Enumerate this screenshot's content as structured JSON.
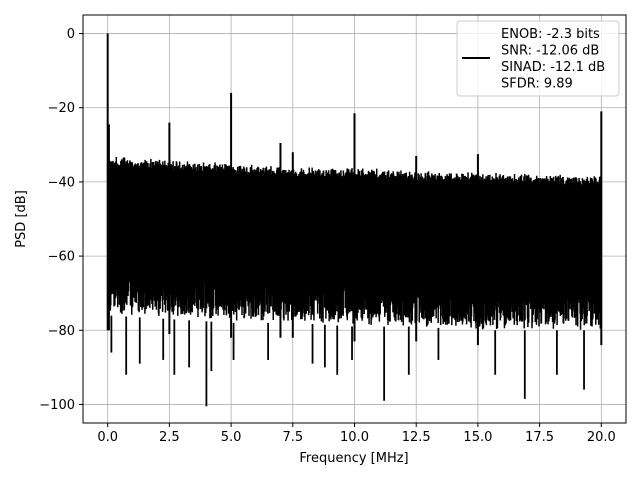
{
  "chart_data": {
    "type": "line",
    "xlabel": "Frequency [MHz]",
    "ylabel": "PSD [dB]",
    "xlim": [
      -1.0,
      21.0
    ],
    "ylim": [
      -105,
      5
    ],
    "grid": true,
    "legend_position": "top-right",
    "line_color": "#000000",
    "x_ticks": [
      {
        "value": 0.0,
        "label": "0.0"
      },
      {
        "value": 2.5,
        "label": "2.5"
      },
      {
        "value": 5.0,
        "label": "5.0"
      },
      {
        "value": 7.5,
        "label": "7.5"
      },
      {
        "value": 10.0,
        "label": "10.0"
      },
      {
        "value": 12.5,
        "label": "12.5"
      },
      {
        "value": 15.0,
        "label": "15.0"
      },
      {
        "value": 17.5,
        "label": "17.5"
      },
      {
        "value": 20.0,
        "label": "20.0"
      }
    ],
    "y_ticks": [
      {
        "value": 0,
        "label": "0"
      },
      {
        "value": -20,
        "label": "−20"
      },
      {
        "value": -40,
        "label": "−40"
      },
      {
        "value": -60,
        "label": "−60"
      },
      {
        "value": -80,
        "label": "−80"
      },
      {
        "value": -100,
        "label": "−100"
      }
    ],
    "legend_lines": [
      "ENOB: -2.3 bits",
      "SNR: -12.06 dB",
      "SINAD: -12.1 dB",
      "SFDR: 9.89"
    ],
    "noise_envelope": {
      "x": [
        0.0,
        2.5,
        5.0,
        7.5,
        10.0,
        12.5,
        15.0,
        17.5,
        20.0
      ],
      "upper": [
        -33,
        -34,
        -35,
        -36,
        -36,
        -37,
        -37,
        -38,
        -38
      ],
      "lower": [
        -76,
        -77,
        -78,
        -78,
        -79,
        -79,
        -80,
        -80,
        -80
      ]
    },
    "spikes": [
      {
        "x": 0.0,
        "y": 0.0
      },
      {
        "x": 0.05,
        "y": -24.5
      },
      {
        "x": 2.5,
        "y": -24.0
      },
      {
        "x": 5.0,
        "y": -16.0
      },
      {
        "x": 7.0,
        "y": -29.5
      },
      {
        "x": 7.5,
        "y": -32.0
      },
      {
        "x": 10.0,
        "y": -21.5
      },
      {
        "x": 12.5,
        "y": -33.0
      },
      {
        "x": 15.0,
        "y": -32.5
      },
      {
        "x": 20.0,
        "y": -21.0
      }
    ],
    "dips": [
      {
        "x": 0.15,
        "y": -86.0
      },
      {
        "x": 0.75,
        "y": -92.0
      },
      {
        "x": 1.3,
        "y": -89.0
      },
      {
        "x": 2.25,
        "y": -88.0
      },
      {
        "x": 2.7,
        "y": -92.0
      },
      {
        "x": 3.3,
        "y": -90.0
      },
      {
        "x": 4.0,
        "y": -100.5
      },
      {
        "x": 4.2,
        "y": -91.0
      },
      {
        "x": 5.1,
        "y": -88.0
      },
      {
        "x": 6.5,
        "y": -88.0
      },
      {
        "x": 8.3,
        "y": -89.0
      },
      {
        "x": 8.8,
        "y": -90.0
      },
      {
        "x": 9.3,
        "y": -92.0
      },
      {
        "x": 9.9,
        "y": -88.0
      },
      {
        "x": 11.2,
        "y": -99.0
      },
      {
        "x": 12.2,
        "y": -92.0
      },
      {
        "x": 13.4,
        "y": -88.0
      },
      {
        "x": 15.7,
        "y": -92.0
      },
      {
        "x": 16.9,
        "y": -98.5
      },
      {
        "x": 18.2,
        "y": -92.0
      },
      {
        "x": 19.3,
        "y": -96.0
      }
    ]
  }
}
